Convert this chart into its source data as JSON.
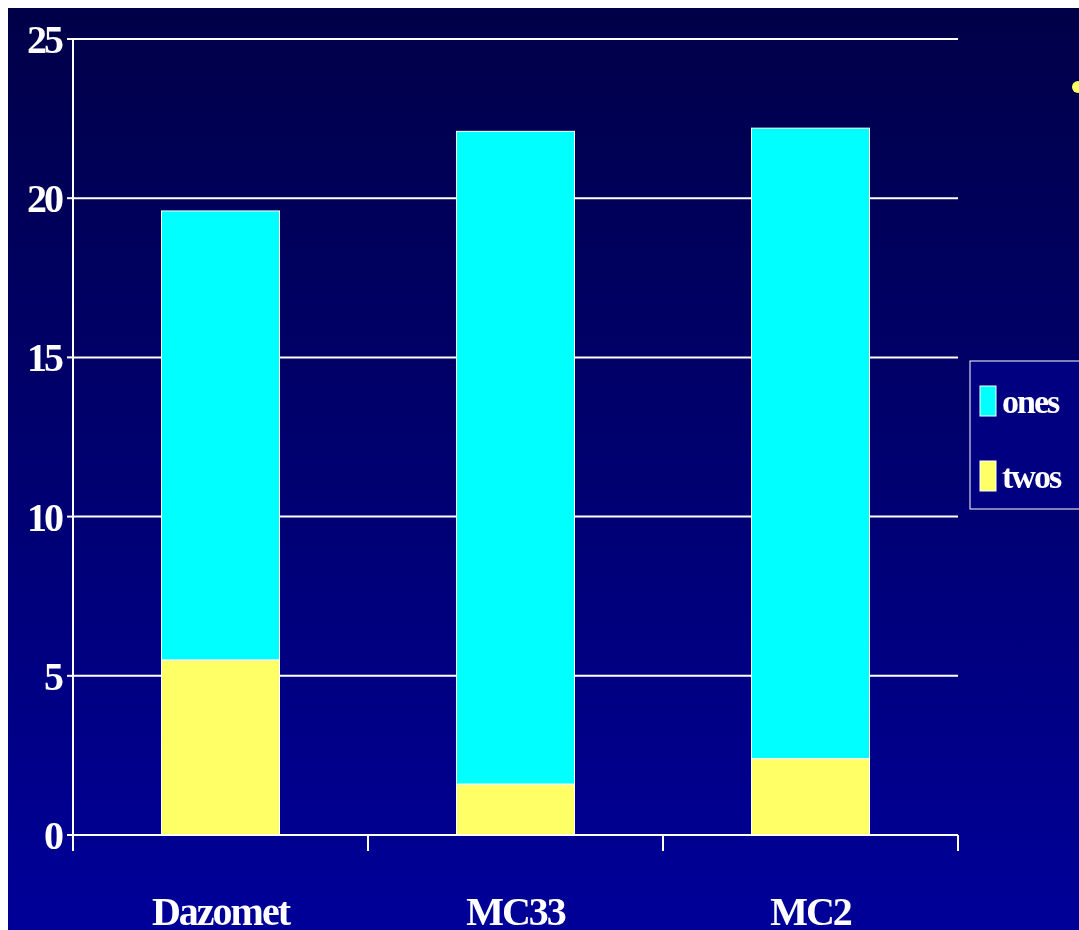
{
  "chart_data": {
    "type": "bar",
    "stacked": true,
    "categories": [
      "Dazomet",
      "MC33",
      "MC2"
    ],
    "series": [
      {
        "name": "twos",
        "color": "#ffff66",
        "values": [
          5.5,
          1.6,
          2.4
        ]
      },
      {
        "name": "ones",
        "color": "#00ffff",
        "values": [
          14.1,
          20.5,
          19.8
        ]
      }
    ],
    "ylim": [
      0,
      25
    ],
    "yticks": [
      0,
      5,
      10,
      15,
      20,
      25
    ],
    "grid": "y",
    "legend": "right"
  }
}
